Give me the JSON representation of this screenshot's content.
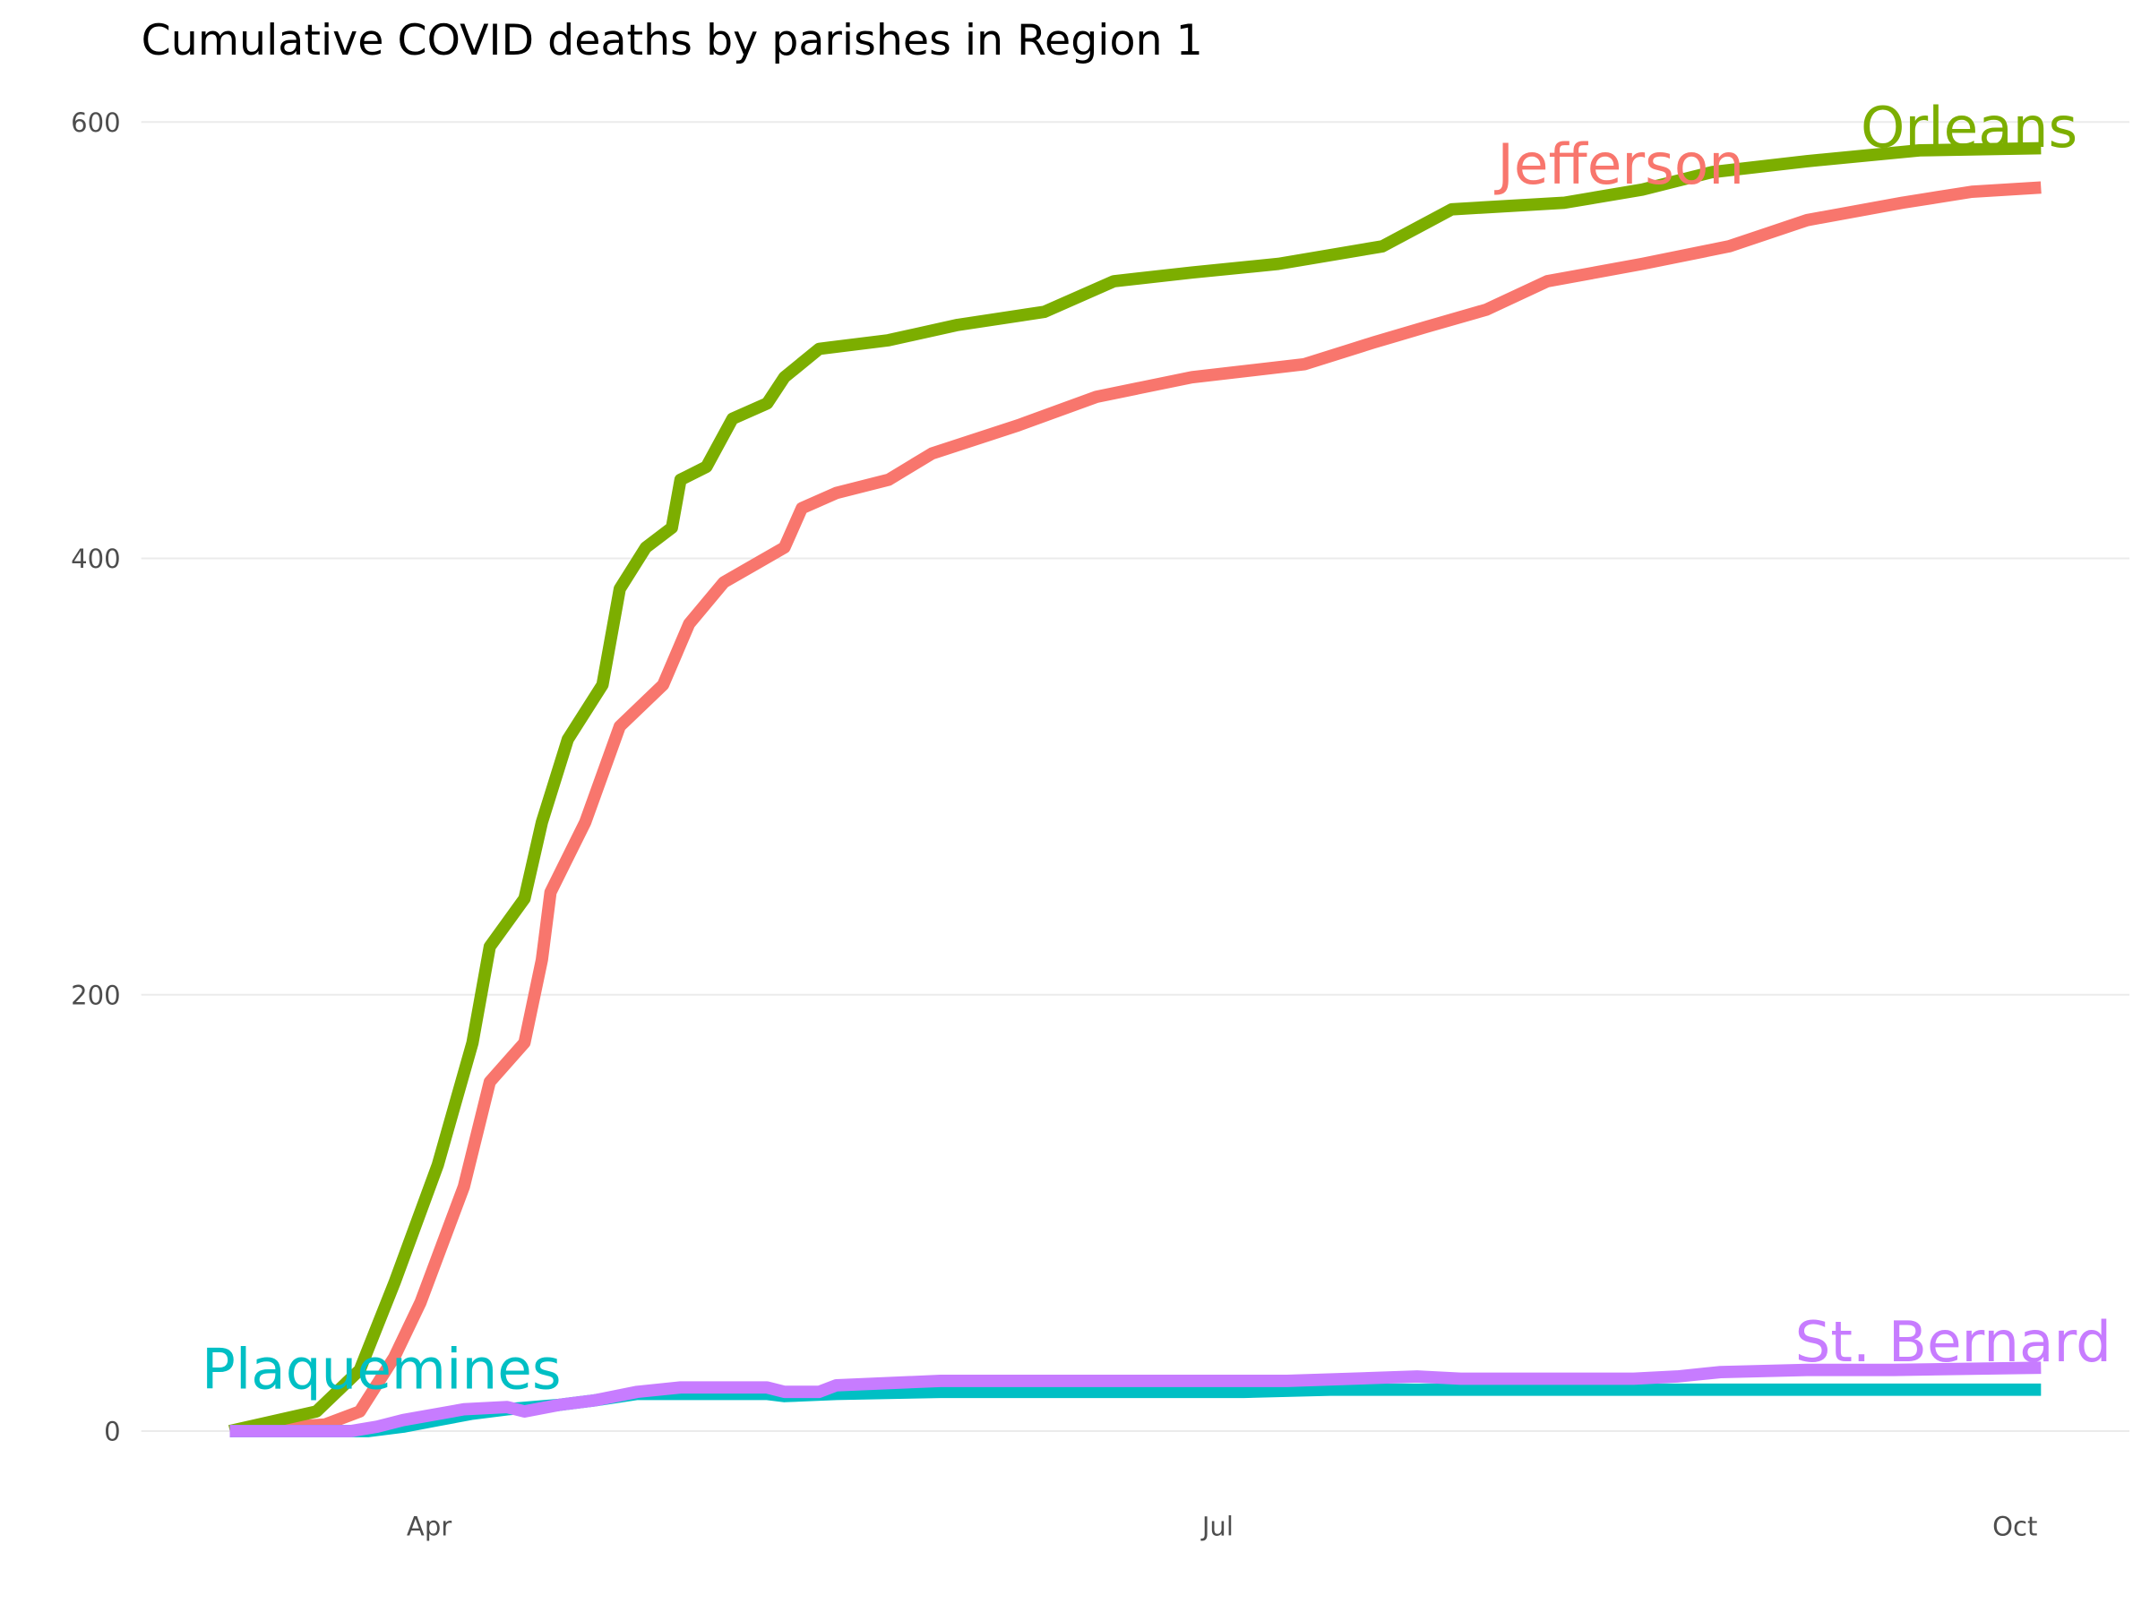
{
  "chart_data": {
    "type": "line",
    "title": "Cumulative COVID deaths by parishes in Region 1",
    "xlabel": "",
    "ylabel": "",
    "x_unit": "day of year 2020 counted from Mar 1 = day 0",
    "xlim": [
      -10,
      225
    ],
    "ylim": [
      -25,
      620
    ],
    "grid": true,
    "legend": "direct labels at line ends",
    "y_ticks": [
      {
        "value": 0,
        "label": "0"
      },
      {
        "value": 200,
        "label": "200"
      },
      {
        "value": 400,
        "label": "400"
      },
      {
        "value": 600,
        "label": "600"
      }
    ],
    "x_ticks": [
      {
        "value": 31,
        "label": "Apr"
      },
      {
        "value": 122,
        "label": "Jul"
      },
      {
        "value": 214,
        "label": "Oct"
      }
    ],
    "series": [
      {
        "name": "Jefferson",
        "color": "#F8766D",
        "x": [
          8,
          19,
          23,
          27,
          30,
          35,
          38,
          42,
          44,
          45,
          49,
          53,
          58,
          61,
          65,
          72,
          74,
          78,
          84,
          89,
          99,
          108,
          119,
          132,
          140,
          146,
          153,
          160,
          171,
          181,
          190,
          201,
          209,
          217
        ],
        "values": [
          0,
          3,
          9,
          34,
          59,
          112,
          160,
          178,
          216,
          247,
          279,
          323,
          342,
          370,
          389,
          405,
          423,
          430,
          436,
          448,
          461,
          474,
          483,
          489,
          499,
          506,
          514,
          527,
          535,
          543,
          555,
          563,
          568,
          570
        ]
      },
      {
        "name": "Orleans",
        "color": "#7CAE00",
        "x": [
          8,
          18,
          23,
          27,
          32,
          36,
          38,
          42,
          44,
          47,
          51,
          53,
          56,
          59,
          60,
          63,
          66,
          70,
          72,
          76,
          84,
          92,
          102,
          110,
          119,
          129,
          141,
          149,
          162,
          171,
          179,
          190,
          203,
          217
        ],
        "values": [
          0,
          9,
          28,
          68,
          122,
          178,
          222,
          244,
          279,
          317,
          342,
          386,
          405,
          414,
          436,
          442,
          464,
          471,
          483,
          496,
          500,
          507,
          513,
          527,
          531,
          535,
          543,
          560,
          563,
          569,
          577,
          582,
          587,
          588
        ]
      },
      {
        "name": "Plaquemines",
        "color": "#00BFC4",
        "x": [
          8,
          24,
          28,
          32,
          36,
          40,
          46,
          50,
          55,
          62,
          70,
          72,
          78,
          90,
          125,
          135,
          150,
          172,
          217
        ],
        "values": [
          0,
          0,
          2,
          5,
          8,
          10,
          12,
          14,
          17,
          17,
          17,
          16,
          17,
          18,
          18,
          19,
          19,
          19,
          19
        ]
      },
      {
        "name": "St. Bernard",
        "color": "#C77CFF",
        "x": [
          8,
          22,
          25,
          28,
          35,
          40,
          42,
          46,
          50,
          55,
          60,
          70,
          72,
          76,
          78,
          90,
          130,
          145,
          150,
          170,
          175,
          180,
          190,
          200,
          217
        ],
        "values": [
          0,
          0,
          2,
          5,
          10,
          11,
          9,
          12,
          14,
          18,
          20,
          20,
          18,
          18,
          21,
          23,
          23,
          25,
          24,
          24,
          25,
          27,
          28,
          28,
          29
        ]
      }
    ],
    "annotations": [
      {
        "text": "Jefferson",
        "color": "#F8766D"
      },
      {
        "text": "Orleans",
        "color": "#7CAE00"
      },
      {
        "text": "Plaquemines",
        "color": "#00BFC4"
      },
      {
        "text": "St. Bernard",
        "color": "#C77CFF"
      }
    ]
  }
}
